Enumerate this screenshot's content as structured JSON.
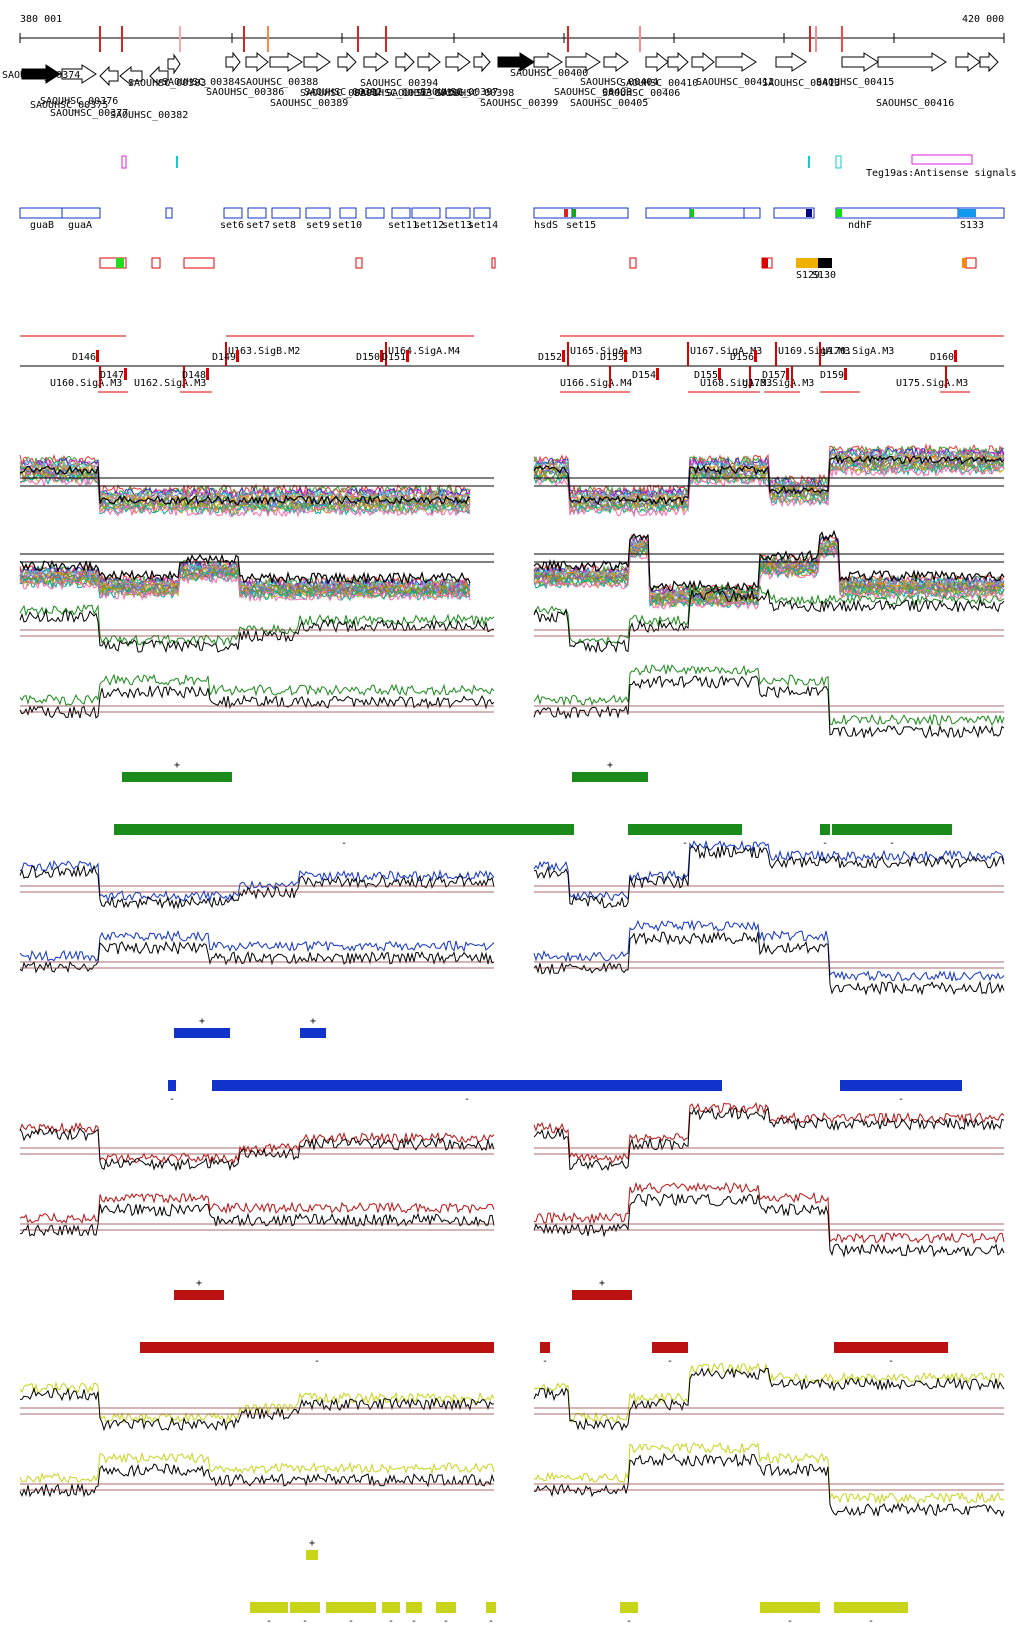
{
  "ruler": {
    "start_label": "380 001",
    "end_label": "420 000",
    "start_bp": 380001,
    "end_bp": 420000
  },
  "colors": {
    "green": "#1a8a1a",
    "blue": "#1133cc",
    "red": "#bb1111",
    "yellow": "#c8d41a",
    "black": "#000000",
    "threshold": "#8b3a3a",
    "gene_box": "#1133cc",
    "segment": "#dd0000",
    "magenta": "#dd22dd",
    "cyan": "#11cccc"
  },
  "genes": [
    {
      "label": "SAOUHSC_00374",
      "strand": "+",
      "filled": true
    },
    {
      "label": "SAOUHSC_00375",
      "strand": "+",
      "filled": false
    },
    {
      "label": "SAOUHSC_00376",
      "strand": "-",
      "filled": false
    },
    {
      "label": "SAOUHSC_00377",
      "strand": "-",
      "filled": false
    },
    {
      "label": "SAOUHSC_00382",
      "strand": "-",
      "filled": false
    },
    {
      "label": "SAOUHSC_00383",
      "strand": "+",
      "filled": false
    },
    {
      "label": "SAOUHSC_00384",
      "strand": "+",
      "filled": false
    },
    {
      "label": "SAOUHSC_00386",
      "strand": "+",
      "filled": false
    },
    {
      "label": "SAOUHSC_00388",
      "strand": "+",
      "filled": false
    },
    {
      "label": "SAOUHSC_00389",
      "strand": "+",
      "filled": false
    },
    {
      "label": "SAOUHSC_00391",
      "strand": "+",
      "filled": false
    },
    {
      "label": "SAOUHSC_00392",
      "strand": "+",
      "filled": false
    },
    {
      "label": "SAOUHSC_00393",
      "strand": "+",
      "filled": false
    },
    {
      "label": "SAOUHSC_00394",
      "strand": "+",
      "filled": false
    },
    {
      "label": "SAOUHSC_00396",
      "strand": "+",
      "filled": false
    },
    {
      "label": "SAOUHSC_00397",
      "strand": "+",
      "filled": true
    },
    {
      "label": "SAOUHSC_00398",
      "strand": "+",
      "filled": false
    },
    {
      "label": "SAOUHSC_00399",
      "strand": "+",
      "filled": false
    },
    {
      "label": "SAOUHSC_00400",
      "strand": "+",
      "filled": false
    },
    {
      "label": "SAOUHSC_00403",
      "strand": "+",
      "filled": false
    },
    {
      "label": "SAOUHSC_00404",
      "strand": "+",
      "filled": false
    },
    {
      "label": "SAOUHSC_00405",
      "strand": "+",
      "filled": false
    },
    {
      "label": "SAOUHSC_00406",
      "strand": "+",
      "filled": false
    },
    {
      "label": "SAOUHSC_00410",
      "strand": "+",
      "filled": false
    },
    {
      "label": "SAOUHSC_00412",
      "strand": "+",
      "filled": false
    },
    {
      "label": "SAOUHSC_00413",
      "strand": "+",
      "filled": false
    },
    {
      "label": "SAOUHSC_00415",
      "strand": "+",
      "filled": false
    },
    {
      "label": "SAOUHSC_00416",
      "strand": "+",
      "filled": false
    }
  ],
  "signals": {
    "legend_label": "Teg19as:Antisense signals"
  },
  "operons": [
    "guaB",
    "guaA",
    "set6",
    "set7",
    "set8",
    "set9",
    "set10",
    "set11",
    "set12",
    "set13",
    "set14",
    "hsdS",
    "set15",
    "ndhF",
    "S133"
  ],
  "extra_features": [
    "S129",
    "S130"
  ],
  "segments_upper": [
    "U163.SigB.M2",
    "U164.SigA.M4",
    "U165.SigA.M3",
    "U167.SigA.M3",
    "U169.SigA.M3",
    "U170.SigA.M3"
  ],
  "segments_lower": [
    "U160.SigA.M3",
    "U162.SigA.M3",
    "U166.SigA.M4",
    "U168.SigA.M3",
    "U173.SigA.M3",
    "U175.SigA.M3"
  ],
  "breakpoints": [
    "D146",
    "D147",
    "D148",
    "D149",
    "D150",
    "D151",
    "D152",
    "D153",
    "D154",
    "D155",
    "D156",
    "D157",
    "D159",
    "D160"
  ],
  "conditions": [
    {
      "name": "green",
      "plus_symbol": "+",
      "minus_symbol": "-"
    },
    {
      "name": "blue",
      "plus_symbol": "+",
      "minus_symbol": "-"
    },
    {
      "name": "red",
      "plus_symbol": "+",
      "minus_symbol": "-"
    },
    {
      "name": "yellow",
      "plus_symbol": "+",
      "minus_symbol": "-"
    }
  ]
}
